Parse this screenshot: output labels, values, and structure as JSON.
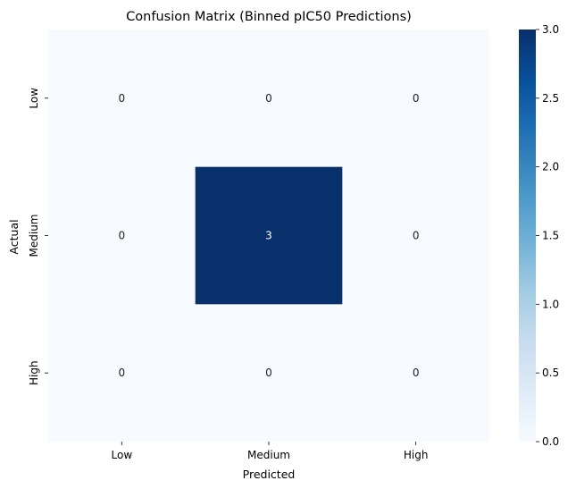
{
  "chart_data": {
    "type": "heatmap",
    "title": "Confusion Matrix (Binned pIC50 Predictions)",
    "xlabel": "Predicted",
    "ylabel": "Actual",
    "x_categories": [
      "Low",
      "Medium",
      "High"
    ],
    "y_categories": [
      "Low",
      "Medium",
      "High"
    ],
    "values": [
      [
        0,
        0,
        0
      ],
      [
        0,
        3,
        0
      ],
      [
        0,
        0,
        0
      ]
    ],
    "colorbar": {
      "range": [
        0.0,
        3.0
      ],
      "ticks": [
        "0.0",
        "0.5",
        "1.0",
        "1.5",
        "2.0",
        "2.5",
        "3.0"
      ],
      "colormap": "Blues",
      "low_color": "#f7fbff",
      "high_color": "#08306b"
    }
  }
}
